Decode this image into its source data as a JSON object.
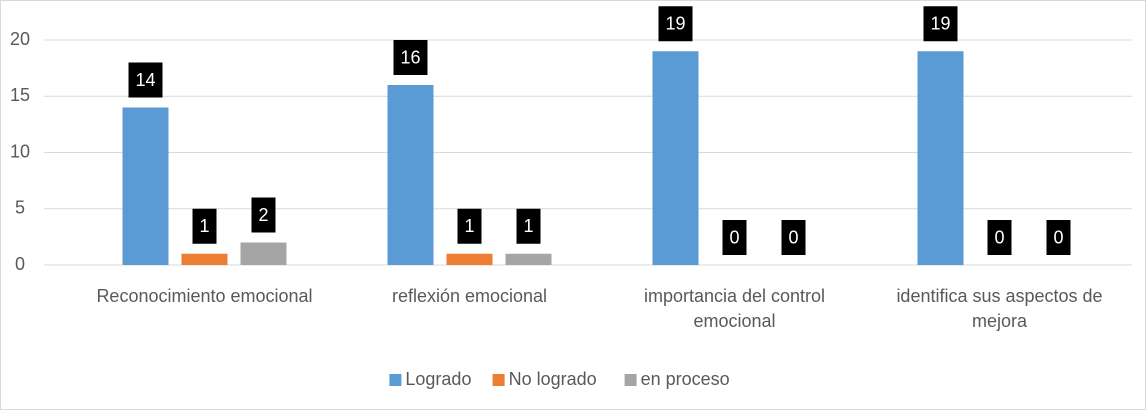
{
  "chart_data": {
    "type": "bar",
    "categories": [
      "Reconocimiento emocional",
      "reflexión emocional",
      "importancia del control emocional",
      "identifica sus aspectos de mejora"
    ],
    "series": [
      {
        "name": "Logrado",
        "color": "#5b9bd5",
        "values": [
          14,
          16,
          19,
          19
        ]
      },
      {
        "name": "No logrado",
        "color": "#ed7d31",
        "values": [
          1,
          1,
          0,
          0
        ]
      },
      {
        "name": "en proceso",
        "color": "#a5a5a5",
        "values": [
          2,
          1,
          0,
          0
        ]
      }
    ],
    "ylim": [
      0,
      20
    ],
    "yticks": [
      0,
      5,
      10,
      15,
      20
    ],
    "grid": true,
    "legend": "bottom"
  }
}
